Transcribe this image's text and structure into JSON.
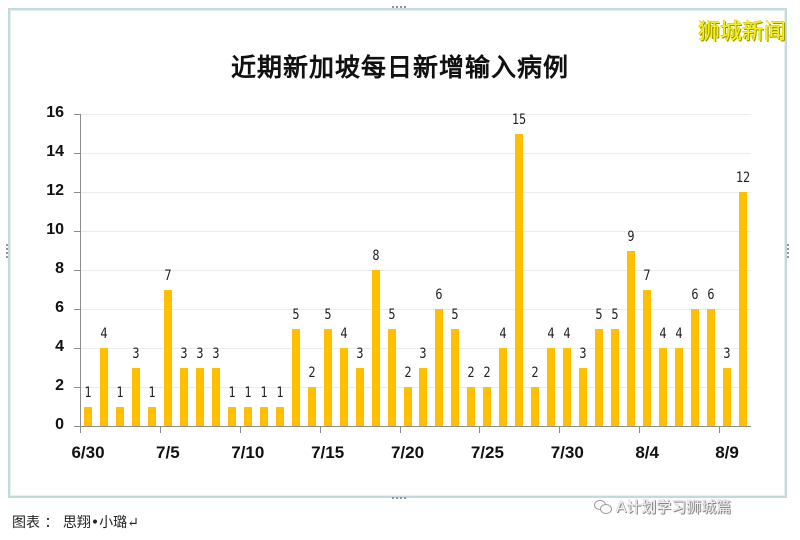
{
  "page": {
    "title": "近期新加坡每日新增输入病例",
    "brand": "狮城新闻",
    "credit": "图表 ： 思翔•小璐↵",
    "watermark": "A计划学习狮城篇",
    "watermark_icon": "wechat-icon"
  },
  "colors": {
    "bar": "#ffc000",
    "brand": "#f7f01a",
    "axis": "#8c8c8c",
    "grid": "#ececec",
    "frame": "#c4dada"
  },
  "chart_data": {
    "type": "bar",
    "title": "近期新加坡每日新增输入病例",
    "xlabel": "",
    "ylabel": "",
    "ylim": [
      0,
      16
    ],
    "yticks": [
      0,
      2,
      4,
      6,
      8,
      10,
      12,
      14,
      16
    ],
    "grid": true,
    "legend": null,
    "data_labels": true,
    "categories": [
      "6/30",
      "7/1",
      "7/2",
      "7/3",
      "7/4",
      "7/5",
      "7/6",
      "7/7",
      "7/8",
      "7/9",
      "7/10",
      "7/11",
      "7/12",
      "7/13",
      "7/14",
      "7/15",
      "7/16",
      "7/17",
      "7/18",
      "7/19",
      "7/20",
      "7/21",
      "7/22",
      "7/23",
      "7/24",
      "7/25",
      "7/26",
      "7/27",
      "7/28",
      "7/29",
      "7/30",
      "7/31",
      "8/1",
      "8/2",
      "8/3",
      "8/4",
      "8/5",
      "8/6",
      "8/7",
      "8/8",
      "8/9",
      "8/10"
    ],
    "values": [
      1,
      4,
      1,
      3,
      1,
      7,
      3,
      3,
      3,
      1,
      1,
      1,
      1,
      5,
      2,
      5,
      4,
      3,
      8,
      5,
      2,
      3,
      6,
      5,
      2,
      2,
      4,
      15,
      2,
      4,
      4,
      3,
      5,
      5,
      9,
      7,
      4,
      4,
      6,
      6,
      3,
      12
    ],
    "xtick_labels": [
      {
        "label": "6/30",
        "index": 0
      },
      {
        "label": "7/5",
        "index": 5
      },
      {
        "label": "7/10",
        "index": 10
      },
      {
        "label": "7/15",
        "index": 15
      },
      {
        "label": "7/20",
        "index": 20
      },
      {
        "label": "7/25",
        "index": 25
      },
      {
        "label": "7/30",
        "index": 30
      },
      {
        "label": "8/4",
        "index": 35
      },
      {
        "label": "8/9",
        "index": 40
      }
    ]
  }
}
